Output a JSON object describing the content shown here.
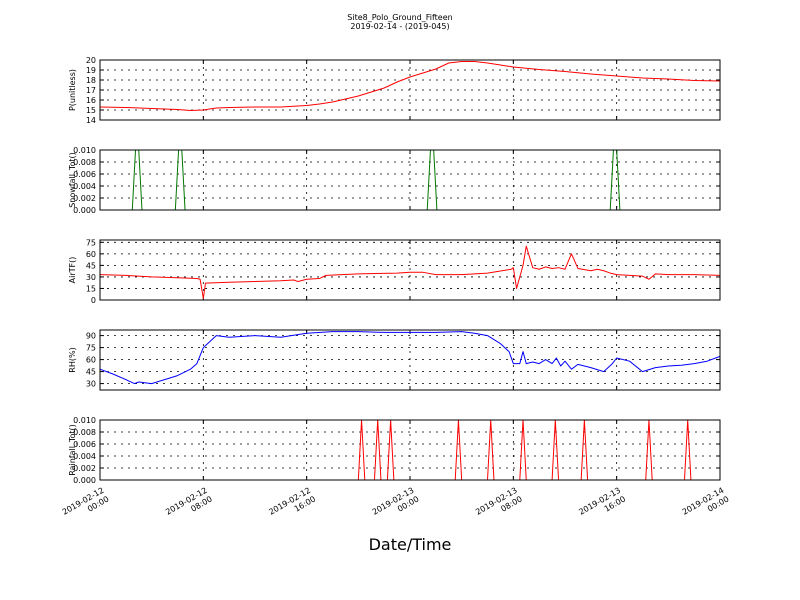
{
  "figure": {
    "title": "Site8_Polo_Ground_Fifteen",
    "subtitle": "2019-02-14 - (2019-045)",
    "xlabel": "Date/Time"
  },
  "x_ticks": [
    {
      "hours": 0,
      "line1": "2019-02-12",
      "line2": "00:00"
    },
    {
      "hours": 8,
      "line1": "2019-02-12",
      "line2": "08:00"
    },
    {
      "hours": 16,
      "line1": "2019-02-12",
      "line2": "16:00"
    },
    {
      "hours": 24,
      "line1": "2019-02-13",
      "line2": "00:00"
    },
    {
      "hours": 32,
      "line1": "2019-02-13",
      "line2": "08:00"
    },
    {
      "hours": 40,
      "line1": "2019-02-13",
      "line2": "16:00"
    },
    {
      "hours": 48,
      "line1": "2019-02-14",
      "line2": "00:00"
    }
  ],
  "chart_data": [
    {
      "type": "line",
      "ylabel": "P(unitless)",
      "color": "#ff0000",
      "xlim": [
        "2019-02-12 00:00",
        "2019-02-14 00:00"
      ],
      "ylim": [
        14,
        20
      ],
      "yticks": [
        "14",
        "15",
        "16",
        "17",
        "18",
        "19",
        "20"
      ],
      "grid": true,
      "series": [
        {
          "x": [
            "2019-02-12 00:00",
            "2019-02-12 02:00",
            "2019-02-12 04:00",
            "2019-02-12 06:00",
            "2019-02-12 07:00",
            "2019-02-12 08:00",
            "2019-02-12 09:00",
            "2019-02-12 10:00",
            "2019-02-12 12:00",
            "2019-02-12 14:00",
            "2019-02-12 16:00",
            "2019-02-12 17:00",
            "2019-02-12 18:00",
            "2019-02-12 19:00",
            "2019-02-12 20:00",
            "2019-02-12 21:00",
            "2019-02-12 22:00",
            "2019-02-12 23:00",
            "2019-02-13 00:00",
            "2019-02-13 01:00",
            "2019-02-13 02:00",
            "2019-02-13 03:00",
            "2019-02-13 04:00",
            "2019-02-13 05:00",
            "2019-02-13 06:00",
            "2019-02-13 07:00",
            "2019-02-13 08:00",
            "2019-02-13 10:00",
            "2019-02-13 12:00",
            "2019-02-13 14:00",
            "2019-02-13 16:00",
            "2019-02-13 18:00",
            "2019-02-13 20:00",
            "2019-02-13 22:00",
            "2019-02-14 00:00"
          ],
          "y": [
            15.3,
            15.25,
            15.15,
            15.05,
            14.95,
            15.0,
            15.2,
            15.25,
            15.3,
            15.3,
            15.45,
            15.6,
            15.8,
            16.1,
            16.4,
            16.8,
            17.2,
            17.8,
            18.3,
            18.7,
            19.1,
            19.7,
            19.85,
            19.85,
            19.7,
            19.5,
            19.3,
            19.05,
            18.85,
            18.6,
            18.4,
            18.2,
            18.1,
            17.95,
            17.9
          ]
        }
      ]
    },
    {
      "type": "line",
      "ylabel": "Snowfall_Tot()",
      "color": "#007700",
      "xlim": [
        "2019-02-12 00:00",
        "2019-02-14 00:00"
      ],
      "ylim": [
        0,
        0.01
      ],
      "yticks": [
        "0.000",
        "0.002",
        "0.004",
        "0.006",
        "0.008",
        "0.010"
      ],
      "grid": true,
      "series": [
        {
          "x": [
            "2019-02-12 00:00",
            "2019-02-12 02:30",
            "2019-02-12 02:45",
            "2019-02-12 03:00",
            "2019-02-12 03:15",
            "2019-02-12 05:50",
            "2019-02-12 06:05",
            "2019-02-12 06:20",
            "2019-02-12 06:35",
            "2019-02-13 01:20",
            "2019-02-13 01:35",
            "2019-02-13 01:50",
            "2019-02-13 02:05",
            "2019-02-13 15:30",
            "2019-02-13 15:45",
            "2019-02-13 16:00",
            "2019-02-13 16:15",
            "2019-02-14 00:00"
          ],
          "y": [
            0,
            0,
            0.01,
            0.01,
            0,
            0,
            0.01,
            0.01,
            0,
            0,
            0.01,
            0.01,
            0,
            0,
            0.01,
            0.01,
            0,
            0
          ]
        }
      ]
    },
    {
      "type": "line",
      "ylabel": "AirTF()",
      "color": "#ff0000",
      "xlim": [
        "2019-02-12 00:00",
        "2019-02-14 00:00"
      ],
      "ylim": [
        0,
        78
      ],
      "yticks": [
        "0",
        "15",
        "30",
        "45",
        "60",
        "75"
      ],
      "grid": true,
      "series": [
        {
          "x": [
            "2019-02-12 00:00",
            "2019-02-12 02:00",
            "2019-02-12 04:00",
            "2019-02-12 06:00",
            "2019-02-12 07:30",
            "2019-02-12 07:45",
            "2019-02-12 08:00",
            "2019-02-12 08:10",
            "2019-02-12 10:00",
            "2019-02-12 12:00",
            "2019-02-12 14:00",
            "2019-02-12 15:00",
            "2019-02-12 15:20",
            "2019-02-12 16:00",
            "2019-02-12 17:00",
            "2019-02-12 17:30",
            "2019-02-12 20:00",
            "2019-02-12 23:00",
            "2019-02-13 00:00",
            "2019-02-13 01:00",
            "2019-02-13 02:00",
            "2019-02-13 04:00",
            "2019-02-13 06:00",
            "2019-02-13 07:50",
            "2019-02-13 08:00",
            "2019-02-13 08:15",
            "2019-02-13 08:45",
            "2019-02-13 09:00",
            "2019-02-13 09:30",
            "2019-02-13 10:00",
            "2019-02-13 10:30",
            "2019-02-13 11:00",
            "2019-02-13 11:30",
            "2019-02-13 12:00",
            "2019-02-13 12:30",
            "2019-02-13 13:00",
            "2019-02-13 14:00",
            "2019-02-13 14:30",
            "2019-02-13 15:00",
            "2019-02-13 15:30",
            "2019-02-13 16:00",
            "2019-02-13 17:00",
            "2019-02-13 18:00",
            "2019-02-13 18:30",
            "2019-02-13 19:00",
            "2019-02-13 20:00",
            "2019-02-13 22:00",
            "2019-02-14 00:00"
          ],
          "y": [
            33,
            32,
            30,
            29,
            28,
            27,
            2,
            22,
            23,
            24,
            25,
            26,
            24,
            27,
            28,
            32,
            34,
            35,
            36,
            36,
            33,
            33,
            35,
            40,
            42,
            15,
            45,
            70,
            42,
            40,
            43,
            41,
            42,
            40,
            60,
            41,
            38,
            40,
            38,
            35,
            33,
            32,
            31,
            27,
            34,
            33,
            33,
            32
          ]
        }
      ]
    },
    {
      "type": "line",
      "ylabel": "RH(%)",
      "color": "#0000ff",
      "xlim": [
        "2019-02-12 00:00",
        "2019-02-14 00:00"
      ],
      "ylim": [
        22,
        97
      ],
      "yticks": [
        "30",
        "45",
        "60",
        "75",
        "90"
      ],
      "grid": true,
      "series": [
        {
          "x": [
            "2019-02-12 00:00",
            "2019-02-12 01:00",
            "2019-02-12 02:00",
            "2019-02-12 02:40",
            "2019-02-12 03:00",
            "2019-02-12 04:00",
            "2019-02-12 05:00",
            "2019-02-12 06:00",
            "2019-02-12 07:00",
            "2019-02-12 07:30",
            "2019-02-12 08:00",
            "2019-02-12 09:00",
            "2019-02-12 10:00",
            "2019-02-12 12:00",
            "2019-02-12 14:00",
            "2019-02-12 16:00",
            "2019-02-12 18:00",
            "2019-02-12 20:00",
            "2019-02-12 22:00",
            "2019-02-13 00:00",
            "2019-02-13 02:00",
            "2019-02-13 04:00",
            "2019-02-13 05:00",
            "2019-02-13 06:00",
            "2019-02-13 07:00",
            "2019-02-13 07:40",
            "2019-02-13 08:00",
            "2019-02-13 08:30",
            "2019-02-13 08:45",
            "2019-02-13 09:00",
            "2019-02-13 09:30",
            "2019-02-13 10:00",
            "2019-02-13 10:30",
            "2019-02-13 11:00",
            "2019-02-13 11:20",
            "2019-02-13 11:40",
            "2019-02-13 12:00",
            "2019-02-13 12:30",
            "2019-02-13 13:00",
            "2019-02-13 14:00",
            "2019-02-13 15:00",
            "2019-02-13 15:40",
            "2019-02-13 16:00",
            "2019-02-13 17:00",
            "2019-02-13 18:00",
            "2019-02-13 19:00",
            "2019-02-13 20:00",
            "2019-02-13 21:00",
            "2019-02-13 22:00",
            "2019-02-13 23:00",
            "2019-02-14 00:00"
          ],
          "y": [
            48,
            42,
            35,
            30,
            32,
            30,
            35,
            40,
            48,
            55,
            75,
            90,
            88,
            90,
            88,
            93,
            95,
            95,
            94,
            94,
            94,
            95,
            93,
            90,
            80,
            70,
            55,
            55,
            70,
            55,
            57,
            55,
            60,
            55,
            62,
            52,
            58,
            48,
            54,
            50,
            45,
            55,
            62,
            58,
            45,
            50,
            52,
            53,
            55,
            58,
            64
          ]
        }
      ]
    },
    {
      "type": "line",
      "ylabel": "Rainfall_Tot()",
      "color": "#ff0000",
      "xlim": [
        "2019-02-12 00:00",
        "2019-02-14 00:00"
      ],
      "ylim": [
        0,
        0.01
      ],
      "yticks": [
        "0.000",
        "0.002",
        "0.004",
        "0.006",
        "0.008",
        "0.010"
      ],
      "grid": true,
      "series": [
        {
          "x": [
            "2019-02-12 00:00",
            "2019-02-12 20:00",
            "2019-02-12 20:15",
            "2019-02-12 20:30",
            "2019-02-12 21:15",
            "2019-02-12 21:30",
            "2019-02-12 21:45",
            "2019-02-12 22:15",
            "2019-02-12 22:30",
            "2019-02-12 22:45",
            "2019-02-13 03:30",
            "2019-02-13 03:45",
            "2019-02-13 04:00",
            "2019-02-13 06:00",
            "2019-02-13 06:15",
            "2019-02-13 06:30",
            "2019-02-13 08:30",
            "2019-02-13 08:45",
            "2019-02-13 09:00",
            "2019-02-13 11:00",
            "2019-02-13 11:15",
            "2019-02-13 11:30",
            "2019-02-13 13:15",
            "2019-02-13 13:30",
            "2019-02-13 13:45",
            "2019-02-13 18:15",
            "2019-02-13 18:30",
            "2019-02-13 18:45",
            "2019-02-13 21:15",
            "2019-02-13 21:30",
            "2019-02-13 21:45",
            "2019-02-14 00:00"
          ],
          "y": [
            0,
            0,
            0.01,
            0,
            0,
            0.01,
            0,
            0,
            0.01,
            0,
            0,
            0.01,
            0,
            0,
            0.01,
            0,
            0,
            0.01,
            0,
            0,
            0.01,
            0,
            0,
            0.01,
            0,
            0,
            0.01,
            0,
            0,
            0.01,
            0,
            0
          ]
        }
      ]
    }
  ]
}
